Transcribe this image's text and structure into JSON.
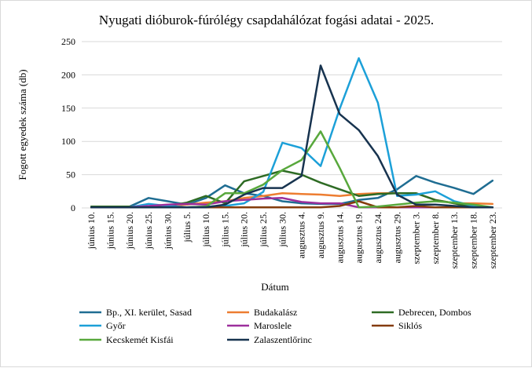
{
  "chart_data": {
    "type": "line",
    "title": "Nyugati dióburok-fúrólégy csapdahálózat fogási adatai - 2025.",
    "xlabel": "Dátum",
    "ylabel": "Fogott egyedek száma (db)",
    "ylim": [
      0,
      250
    ],
    "yticks": [
      0,
      50,
      100,
      150,
      200,
      250
    ],
    "grid": true,
    "legend_position": "bottom",
    "categories": [
      "június 10.",
      "június 15.",
      "június 20.",
      "június 25.",
      "június 30.",
      "július 5.",
      "július 10.",
      "július 15.",
      "július 20.",
      "július 25.",
      "július 30.",
      "augusztus 4.",
      "augusztus 9.",
      "augusztus 14.",
      "augusztus 19.",
      "augusztus 24.",
      "augusztus 29.",
      "szeptember 3.",
      "szeptember 8.",
      "szeptember 13.",
      "szeptember 18.",
      "szeptember 23."
    ],
    "series": [
      {
        "name": "Bp., XI. kerület, Sasad",
        "color": "#1f6d92",
        "values": [
          2,
          2,
          2,
          15,
          10,
          5,
          15,
          34,
          22,
          18,
          10,
          7,
          6,
          6,
          12,
          15,
          28,
          48,
          38,
          30,
          21,
          41
        ]
      },
      {
        "name": "Budakalász",
        "color": "#ed7d31",
        "values": [
          1,
          1,
          1,
          2,
          3,
          5,
          8,
          10,
          15,
          18,
          22,
          21,
          20,
          18,
          21,
          22,
          22,
          22,
          12,
          7,
          7,
          6
        ]
      },
      {
        "name": "Debrecen, Dombos",
        "color": "#2e6b24",
        "values": [
          2,
          2,
          2,
          2,
          3,
          8,
          18,
          7,
          40,
          48,
          56,
          50,
          38,
          28,
          18,
          21,
          22,
          22,
          12,
          7,
          1,
          1
        ]
      },
      {
        "name": "Győr",
        "color": "#1ca0d8",
        "values": [
          1,
          1,
          1,
          6,
          3,
          1,
          2,
          3,
          7,
          24,
          98,
          90,
          63,
          149,
          225,
          158,
          18,
          20,
          25,
          10,
          3,
          1
        ]
      },
      {
        "name": "Maroslele",
        "color": "#9c2f9c",
        "values": [
          1,
          1,
          1,
          3,
          5,
          6,
          5,
          10,
          12,
          14,
          15,
          9,
          7,
          7,
          1,
          1,
          1,
          1,
          1,
          1,
          1,
          1
        ]
      },
      {
        "name": "Siklós",
        "color": "#843c0c",
        "values": [
          1,
          1,
          1,
          1,
          1,
          1,
          1,
          1,
          1,
          1,
          1,
          1,
          1,
          3,
          10,
          1,
          1,
          3,
          1,
          1,
          1,
          1
        ]
      },
      {
        "name": "Kecskemét Kisfái",
        "color": "#58a83c",
        "values": [
          1,
          1,
          1,
          1,
          1,
          1,
          2,
          22,
          22,
          35,
          57,
          72,
          115,
          60,
          1,
          2,
          5,
          8,
          10,
          8,
          5,
          1
        ]
      },
      {
        "name": "Zalaszentlőrinc",
        "color": "#17334f",
        "values": [
          1,
          1,
          1,
          1,
          1,
          1,
          1,
          5,
          20,
          30,
          30,
          48,
          214,
          141,
          117,
          78,
          20,
          5,
          5,
          3,
          1,
          1
        ]
      }
    ]
  }
}
